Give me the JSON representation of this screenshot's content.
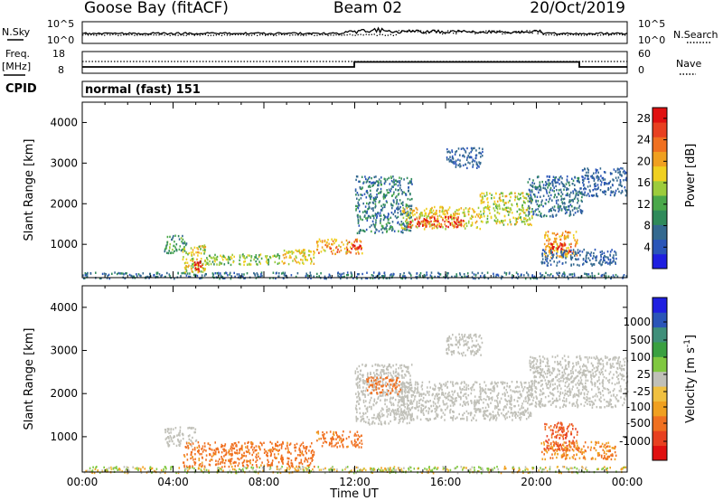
{
  "header": {
    "station": "Goose Bay (fitACF)",
    "beam": "Beam 02",
    "date": "20/Oct/2019"
  },
  "top_panels": {
    "nsky_label": "N.Sky",
    "nsky_ticks": [
      "10^5",
      "10^0"
    ],
    "nsearch_label": "N.Search",
    "nsearch_ticks": [
      "10^5",
      "10^0"
    ],
    "freq_label": "Freq.",
    "freq_unit": "[MHz]",
    "freq_ticks": [
      "18",
      "8"
    ],
    "nave_label": "Nave",
    "nave_ticks": [
      "60",
      "0"
    ],
    "cpid_label": "CPID",
    "cpid_value": "normal (fast) 151"
  },
  "colors": {
    "power": [
      "#1f1fe0",
      "#2a55b8",
      "#34698f",
      "#2f8a5a",
      "#4aa84a",
      "#9ccc3c",
      "#f0d020",
      "#f0a020",
      "#f07020",
      "#e84020",
      "#e01010"
    ],
    "velocity": [
      "#e01010",
      "#e84020",
      "#f07020",
      "#f0a020",
      "#f0c040",
      "#c0c0b8",
      "#80c840",
      "#3aa040",
      "#3f8f7a",
      "#2a55b8",
      "#1f1fe0"
    ]
  },
  "chart_data": [
    {
      "type": "heatmap",
      "name": "power",
      "xlabel": "Time UT",
      "ylabel": "Slant Range [km]",
      "x_ticks": [
        "00:00",
        "04:00",
        "08:00",
        "12:00",
        "16:00",
        "20:00",
        "00:00"
      ],
      "xlim_hours": [
        0,
        24
      ],
      "ylim_km": [
        180,
        4500
      ],
      "y_ticks": [
        1000,
        2000,
        3000,
        4000
      ],
      "colorbar": {
        "label": "Power [dB]",
        "ticks": [
          4,
          8,
          12,
          16,
          20,
          24,
          28
        ],
        "range": [
          0,
          30
        ]
      },
      "regions": [
        {
          "t": [
            0.0,
            24.0
          ],
          "r": [
            180,
            330
          ],
          "v": [
            4,
            10
          ]
        },
        {
          "t": [
            3.6,
            4.6
          ],
          "r": [
            800,
            1250
          ],
          "v": [
            6,
            14
          ]
        },
        {
          "t": [
            4.4,
            5.4
          ],
          "r": [
            320,
            1000
          ],
          "v": [
            12,
            22
          ]
        },
        {
          "t": [
            4.9,
            5.3
          ],
          "r": [
            350,
            620
          ],
          "v": [
            26,
            30
          ]
        },
        {
          "t": [
            5.2,
            8.8
          ],
          "r": [
            520,
            780
          ],
          "v": [
            10,
            18
          ]
        },
        {
          "t": [
            8.8,
            10.2
          ],
          "r": [
            520,
            900
          ],
          "v": [
            14,
            22
          ]
        },
        {
          "t": [
            10.3,
            12.3
          ],
          "r": [
            780,
            1150
          ],
          "v": [
            16,
            26
          ]
        },
        {
          "t": [
            11.5,
            12.3
          ],
          "r": [
            880,
            1020
          ],
          "v": [
            26,
            30
          ]
        },
        {
          "t": [
            12.0,
            14.5
          ],
          "r": [
            1300,
            2700
          ],
          "v": [
            4,
            12
          ]
        },
        {
          "t": [
            14.0,
            17.5
          ],
          "r": [
            1400,
            1950
          ],
          "v": [
            14,
            22
          ]
        },
        {
          "t": [
            14.3,
            16.8
          ],
          "r": [
            1450,
            1700
          ],
          "v": [
            24,
            30
          ]
        },
        {
          "t": [
            17.5,
            19.8
          ],
          "r": [
            1500,
            2300
          ],
          "v": [
            12,
            20
          ]
        },
        {
          "t": [
            19.6,
            22.0
          ],
          "r": [
            1700,
            2700
          ],
          "v": [
            4,
            10
          ]
        },
        {
          "t": [
            22.0,
            24.0
          ],
          "r": [
            2200,
            2900
          ],
          "v": [
            4,
            8
          ]
        },
        {
          "t": [
            20.3,
            21.8
          ],
          "r": [
            700,
            1350
          ],
          "v": [
            16,
            24
          ]
        },
        {
          "t": [
            20.6,
            21.5
          ],
          "r": [
            800,
            1050
          ],
          "v": [
            26,
            30
          ]
        },
        {
          "t": [
            20.2,
            23.5
          ],
          "r": [
            500,
            900
          ],
          "v": [
            4,
            8
          ]
        },
        {
          "t": [
            16.0,
            17.6
          ],
          "r": [
            2900,
            3400
          ],
          "v": [
            4,
            8
          ]
        }
      ]
    },
    {
      "type": "heatmap",
      "name": "velocity",
      "xlabel": "Time UT",
      "ylabel": "Slant Range [km]",
      "x_ticks": [
        "00:00",
        "04:00",
        "08:00",
        "12:00",
        "16:00",
        "20:00",
        "00:00"
      ],
      "xlim_hours": [
        0,
        24
      ],
      "ylim_km": [
        180,
        4500
      ],
      "y_ticks": [
        1000,
        2000,
        3000,
        4000
      ],
      "colorbar": {
        "label": "Velocity [m s^-1]",
        "ticks": [
          "1000",
          "500",
          "100",
          "25",
          "-25",
          "-100",
          "-500",
          "-1000"
        ]
      },
      "regions": [
        {
          "t": [
            0.0,
            24.0
          ],
          "r": [
            180,
            330
          ],
          "v": [
            -100,
            100
          ]
        },
        {
          "t": [
            3.6,
            5.0
          ],
          "r": [
            800,
            1250
          ],
          "v": [
            -25,
            25
          ]
        },
        {
          "t": [
            4.4,
            10.2
          ],
          "r": [
            320,
            900
          ],
          "v": [
            -200,
            -90
          ]
        },
        {
          "t": [
            10.3,
            12.3
          ],
          "r": [
            780,
            1150
          ],
          "v": [
            -200,
            -90
          ]
        },
        {
          "t": [
            12.0,
            14.5
          ],
          "r": [
            1300,
            2700
          ],
          "v": [
            -25,
            25
          ]
        },
        {
          "t": [
            14.0,
            19.8
          ],
          "r": [
            1400,
            2300
          ],
          "v": [
            -25,
            25
          ]
        },
        {
          "t": [
            19.6,
            24.0
          ],
          "r": [
            1700,
            2900
          ],
          "v": [
            -25,
            25
          ]
        },
        {
          "t": [
            20.3,
            21.8
          ],
          "r": [
            700,
            1350
          ],
          "v": [
            -400,
            -150
          ]
        },
        {
          "t": [
            20.2,
            23.5
          ],
          "r": [
            500,
            900
          ],
          "v": [
            -150,
            -50
          ]
        },
        {
          "t": [
            12.5,
            14.0
          ],
          "r": [
            2000,
            2400
          ],
          "v": [
            -150,
            -100
          ]
        },
        {
          "t": [
            16.0,
            17.6
          ],
          "r": [
            2900,
            3400
          ],
          "v": [
            -25,
            25
          ]
        }
      ]
    }
  ]
}
